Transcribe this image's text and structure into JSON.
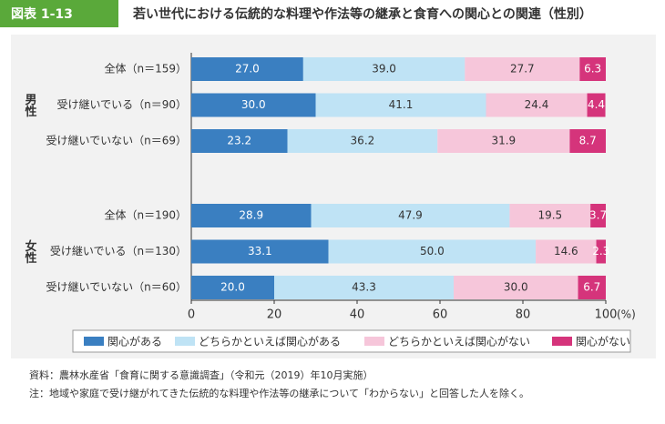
{
  "header": {
    "badge": "図表 1-13",
    "title": "若い世代における伝統的な料理や作法等の継承と食育への関心との関連（性別）"
  },
  "chart_data": {
    "type": "stacked-barh",
    "groups": [
      "男性",
      "女性"
    ],
    "categories": [
      "全体（n＝159）",
      "受け継いでいる（n＝90）",
      "受け継いでいない（n＝69）",
      "全体（n＝190）",
      "受け継いでいる（n＝130）",
      "受け継いでいない（n＝60）"
    ],
    "series": [
      {
        "name": "関心がある",
        "color": "#3a7fc1",
        "label_color": "#ffffff",
        "values": [
          27,
          30,
          23.2,
          28.9,
          33.1,
          20
        ],
        "value_labels": [
          "27.0",
          "30.0",
          "23.2",
          "28.9",
          "33.1",
          "20.0"
        ]
      },
      {
        "name": "どちらかといえば関心がある",
        "color": "#bfe3f5",
        "label_color": "#333333",
        "values": [
          39,
          41.1,
          36.2,
          47.9,
          50,
          43.3
        ],
        "value_labels": [
          "39.0",
          "41.1",
          "36.2",
          "47.9",
          "50.0",
          "43.3"
        ]
      },
      {
        "name": "どちらかといえば関心がない",
        "color": "#f6c6da",
        "label_color": "#333333",
        "values": [
          27.7,
          24.4,
          31.9,
          19.5,
          14.6,
          30
        ],
        "value_labels": [
          "27.7",
          "24.4",
          "31.9",
          "19.5",
          "14.6",
          "30.0"
        ]
      },
      {
        "name": "関心がない",
        "color": "#d5347b",
        "label_color": "#ffffff",
        "values": [
          6.3,
          4.4,
          8.7,
          3.7,
          2.3,
          6.7
        ]
      }
    ],
    "xlim": [
      0,
      100
    ],
    "xticks": [
      0,
      20,
      40,
      60,
      80,
      100
    ],
    "x_unit": "(%)"
  },
  "notes": [
    "資料：農林水産省「食育に関する意識調査」（令和元（2019）年10月実施）",
    "注：地域や家庭で受け継がれてきた伝統的な料理や作法等の継承について「わからない」と回答した人を除く。"
  ]
}
